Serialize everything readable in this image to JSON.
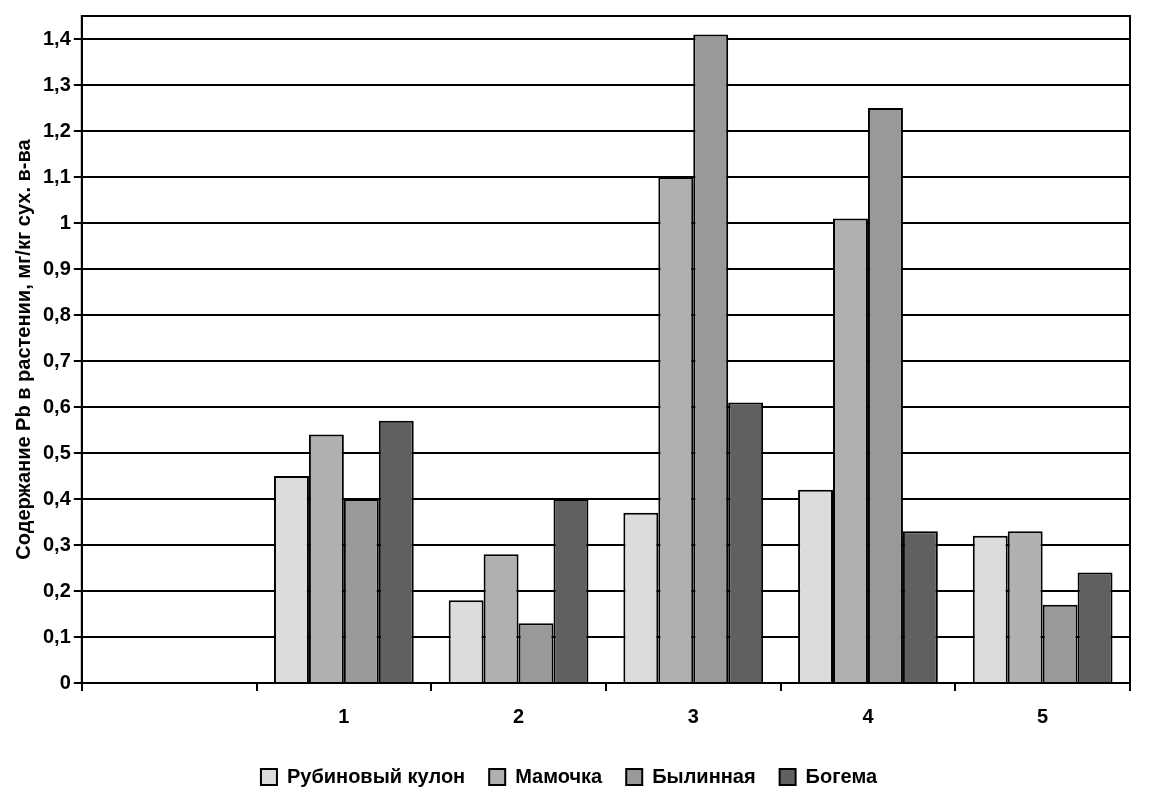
{
  "chart_data": {
    "type": "bar",
    "ylabel": "Содержание Pb в растении, мг/кг сух. в-ва",
    "categories": [
      null,
      "1",
      "2",
      "3",
      "4",
      "5"
    ],
    "series": [
      {
        "name": "Рубиновый кулон",
        "color": "#dcdcdc",
        "values": [
          null,
          0.45,
          0.18,
          0.37,
          0.42,
          0.32
        ]
      },
      {
        "name": "Мамочка",
        "color": "#b0b0b0",
        "values": [
          null,
          0.54,
          0.28,
          1.1,
          1.01,
          0.33
        ]
      },
      {
        "name": "Былинная",
        "color": "#999999",
        "values": [
          null,
          0.4,
          0.13,
          1.41,
          1.25,
          0.17
        ]
      },
      {
        "name": "Богема",
        "color": "#606060",
        "values": [
          null,
          0.57,
          0.4,
          0.61,
          0.33,
          0.24
        ]
      }
    ],
    "ylim": [
      0,
      1.45
    ],
    "yticks": [
      0,
      {
        "value": 0.1,
        "label": "0,1"
      },
      {
        "value": 0.2,
        "label": "0,2"
      },
      {
        "value": 0.3,
        "label": "0,3"
      },
      {
        "value": 0.4,
        "label": "0,4"
      },
      {
        "value": 0.5,
        "label": "0,5"
      },
      {
        "value": 0.6,
        "label": "0,6"
      },
      {
        "value": 0.7,
        "label": "0,7"
      },
      {
        "value": 0.8,
        "label": "0,8"
      },
      {
        "value": 0.9,
        "label": "0,9"
      },
      1,
      {
        "value": 1.1,
        "label": "1,1"
      },
      {
        "value": 1.2,
        "label": "1,2"
      },
      {
        "value": 1.3,
        "label": "1,3"
      },
      {
        "value": 1.4,
        "label": "1,4"
      }
    ],
    "grid": "y",
    "legend": "bottom"
  }
}
